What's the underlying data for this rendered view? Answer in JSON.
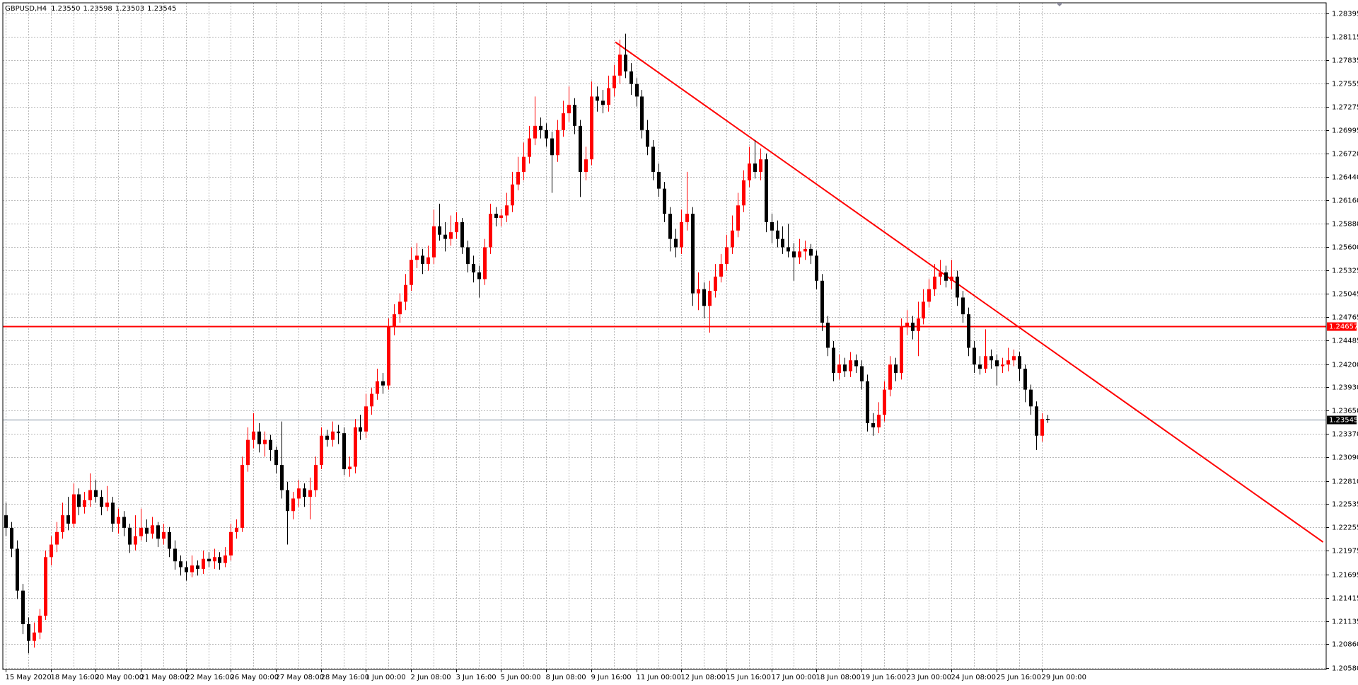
{
  "chart_data": {
    "type": "candlestick",
    "header": {
      "symbol": "GBPUSD,H4",
      "ohlc_labels": [
        "1.23550",
        "1.23598",
        "1.23503",
        "1.23545"
      ]
    },
    "bull_color": "#ff0000",
    "bear_color": "#000000",
    "grid": true,
    "ylim": [
      1.20559,
      1.28519
    ],
    "yticks": [
      1.28395,
      1.28115,
      1.27835,
      1.27555,
      1.27275,
      1.26995,
      {
        "value": 1.2672,
        "label": "1.26720"
      },
      {
        "value": 1.2644,
        "label": "1.26440"
      },
      {
        "value": 1.2616,
        "label": "1.26160"
      },
      {
        "value": 1.2588,
        "label": "1.25880"
      },
      {
        "value": 1.256,
        "label": "1.25600"
      },
      1.25325,
      1.25045,
      1.24765,
      1.24485,
      {
        "value": 1.242,
        "label": "1.24200"
      },
      {
        "value": 1.2393,
        "label": "1.23930"
      },
      {
        "value": 1.2365,
        "label": "1.23650"
      },
      {
        "value": 1.2337,
        "label": "1.23370"
      },
      {
        "value": 1.2309,
        "label": "1.23090"
      },
      {
        "value": 1.2281,
        "label": "1.22810"
      },
      1.22535,
      1.22255,
      1.21975,
      1.21695,
      1.21415,
      1.21135,
      {
        "value": 1.2086,
        "label": "1.20860"
      },
      {
        "value": 1.2058,
        "label": "1.20580"
      }
    ],
    "hline": {
      "value": 1.24657,
      "label": "1.24657",
      "color": "#ff0000"
    },
    "bid_line": {
      "value": 1.23545,
      "label": "1.23545",
      "color": "#778899"
    },
    "trendline": {
      "x": [
        108.3,
        234
      ],
      "y": [
        1.2805,
        1.2208
      ],
      "color": "#ff0000"
    },
    "categories": [
      "15 May 2020",
      null,
      null,
      null,
      null,
      null,
      null,
      null,
      "18 May 16:00",
      null,
      null,
      null,
      null,
      null,
      null,
      null,
      "20 May 00:00",
      null,
      null,
      null,
      null,
      null,
      null,
      null,
      "21 May 08:00",
      null,
      null,
      null,
      null,
      null,
      null,
      null,
      "22 May 16:00",
      null,
      null,
      null,
      null,
      null,
      null,
      null,
      "26 May 00:00",
      null,
      null,
      null,
      null,
      null,
      null,
      null,
      "27 May 08:00",
      null,
      null,
      null,
      null,
      null,
      null,
      null,
      "28 May 16:00",
      null,
      null,
      null,
      null,
      null,
      null,
      null,
      "1 Jun 00:00",
      null,
      null,
      null,
      null,
      null,
      null,
      null,
      "2 Jun 08:00",
      null,
      null,
      null,
      null,
      null,
      null,
      null,
      "3 Jun 16:00",
      null,
      null,
      null,
      null,
      null,
      null,
      null,
      "5 Jun 00:00",
      null,
      null,
      null,
      null,
      null,
      null,
      null,
      "8 Jun 08:00",
      null,
      null,
      null,
      null,
      null,
      null,
      null,
      "9 Jun 16:00",
      null,
      null,
      null,
      null,
      null,
      null,
      null,
      "11 Jun 00:00",
      null,
      null,
      null,
      null,
      null,
      null,
      null,
      "12 Jun 08:00",
      null,
      null,
      null,
      null,
      null,
      null,
      null,
      "15 Jun 16:00",
      null,
      null,
      null,
      null,
      null,
      null,
      null,
      "17 Jun 00:00",
      null,
      null,
      null,
      null,
      null,
      null,
      null,
      "18 Jun 08:00",
      null,
      null,
      null,
      null,
      null,
      null,
      null,
      "19 Jun 16:00",
      null,
      null,
      null,
      null,
      null,
      null,
      null,
      "23 Jun 00:00",
      null,
      null,
      null,
      null,
      null,
      null,
      null,
      "24 Jun 08:00",
      null,
      null,
      null,
      null,
      null,
      null,
      null,
      "25 Jun 16:00",
      null,
      null,
      null,
      null,
      null,
      null,
      null,
      "29 Jun 00:00",
      null
    ],
    "ohlc": [
      [
        1.224,
        1.2255,
        1.2215,
        1.2225
      ],
      [
        1.2225,
        1.2232,
        1.219,
        1.22
      ],
      [
        1.22,
        1.221,
        1.214,
        1.215
      ],
      [
        1.215,
        1.2158,
        1.2098,
        1.211
      ],
      [
        1.211,
        1.2118,
        1.2075,
        1.209
      ],
      [
        1.209,
        1.2112,
        1.2082,
        1.21
      ],
      [
        1.21,
        1.2128,
        1.2092,
        1.212
      ],
      [
        1.212,
        1.2198,
        1.2115,
        1.219
      ],
      [
        1.219,
        1.2215,
        1.218,
        1.2205
      ],
      [
        1.2205,
        1.2232,
        1.2196,
        1.222
      ],
      [
        1.222,
        1.2255,
        1.2212,
        1.224
      ],
      [
        1.224,
        1.2262,
        1.2222,
        1.223
      ],
      [
        1.223,
        1.2278,
        1.2225,
        1.2265
      ],
      [
        1.2265,
        1.2272,
        1.224,
        1.225
      ],
      [
        1.225,
        1.2268,
        1.2242,
        1.2258
      ],
      [
        1.2258,
        1.229,
        1.225,
        1.227
      ],
      [
        1.227,
        1.2282,
        1.2255,
        1.2262
      ],
      [
        1.2262,
        1.227,
        1.224,
        1.225
      ],
      [
        1.225,
        1.2275,
        1.2245,
        1.2255
      ],
      [
        1.2255,
        1.2262,
        1.222,
        1.223
      ],
      [
        1.223,
        1.2248,
        1.2218,
        1.2238
      ],
      [
        1.2238,
        1.2245,
        1.2215,
        1.2225
      ],
      [
        1.2225,
        1.223,
        1.2195,
        1.2205
      ],
      [
        1.2205,
        1.224,
        1.2198,
        1.2215
      ],
      [
        1.2215,
        1.2248,
        1.221,
        1.2225
      ],
      [
        1.2225,
        1.2235,
        1.2208,
        1.2218
      ],
      [
        1.2218,
        1.2238,
        1.2212,
        1.2228
      ],
      [
        1.2228,
        1.2232,
        1.2202,
        1.2212
      ],
      [
        1.2212,
        1.223,
        1.2205,
        1.222
      ],
      [
        1.222,
        1.2226,
        1.219,
        1.22
      ],
      [
        1.22,
        1.221,
        1.2175,
        1.2185
      ],
      [
        1.2185,
        1.2192,
        1.2168,
        1.2178
      ],
      [
        1.2178,
        1.2185,
        1.2162,
        1.2172
      ],
      [
        1.2172,
        1.2192,
        1.2166,
        1.218
      ],
      [
        1.218,
        1.2186,
        1.2168,
        1.2176
      ],
      [
        1.2176,
        1.2198,
        1.217,
        1.2188
      ],
      [
        1.2188,
        1.2196,
        1.2178,
        1.2185
      ],
      [
        1.2185,
        1.22,
        1.2176,
        1.219
      ],
      [
        1.219,
        1.2196,
        1.2175,
        1.2183
      ],
      [
        1.2183,
        1.2202,
        1.2178,
        1.2192
      ],
      [
        1.2192,
        1.223,
        1.2186,
        1.222
      ],
      [
        1.222,
        1.2235,
        1.2212,
        1.2225
      ],
      [
        1.2225,
        1.231,
        1.222,
        1.23
      ],
      [
        1.23,
        1.2345,
        1.2292,
        1.233
      ],
      [
        1.233,
        1.2362,
        1.232,
        1.234
      ],
      [
        1.234,
        1.235,
        1.2315,
        1.2325
      ],
      [
        1.2325,
        1.234,
        1.231,
        1.233
      ],
      [
        1.233,
        1.2336,
        1.2305,
        1.2318
      ],
      [
        1.2318,
        1.2322,
        1.229,
        1.23
      ],
      [
        1.23,
        1.2352,
        1.226,
        1.227
      ],
      [
        1.227,
        1.228,
        1.2205,
        1.2245
      ],
      [
        1.2245,
        1.2268,
        1.2235,
        1.226
      ],
      [
        1.226,
        1.2282,
        1.225,
        1.2272
      ],
      [
        1.2272,
        1.2278,
        1.225,
        1.2262
      ],
      [
        1.2262,
        1.2285,
        1.2235,
        1.227
      ],
      [
        1.227,
        1.231,
        1.2262,
        1.23
      ],
      [
        1.23,
        1.2345,
        1.2295,
        1.2335
      ],
      [
        1.2335,
        1.2342,
        1.2322,
        1.233
      ],
      [
        1.233,
        1.2352,
        1.2322,
        1.234
      ],
      [
        1.234,
        1.2348,
        1.2325,
        1.2338
      ],
      [
        1.2338,
        1.2345,
        1.2288,
        1.2295
      ],
      [
        1.2295,
        1.231,
        1.2286,
        1.2298
      ],
      [
        1.2298,
        1.2355,
        1.229,
        1.2345
      ],
      [
        1.2345,
        1.236,
        1.233,
        1.234
      ],
      [
        1.234,
        1.2385,
        1.2332,
        1.237
      ],
      [
        1.237,
        1.2392,
        1.236,
        1.2385
      ],
      [
        1.2385,
        1.2415,
        1.2378,
        1.24
      ],
      [
        1.24,
        1.241,
        1.2385,
        1.2395
      ],
      [
        1.2395,
        1.2475,
        1.239,
        1.2465
      ],
      [
        1.2465,
        1.2492,
        1.2455,
        1.248
      ],
      [
        1.248,
        1.2505,
        1.247,
        1.2495
      ],
      [
        1.2495,
        1.2528,
        1.2485,
        1.2515
      ],
      [
        1.2515,
        1.256,
        1.2508,
        1.2545
      ],
      [
        1.2545,
        1.2565,
        1.2535,
        1.255
      ],
      [
        1.255,
        1.2558,
        1.2528,
        1.254
      ],
      [
        1.254,
        1.2562,
        1.2532,
        1.2548
      ],
      [
        1.2548,
        1.2605,
        1.254,
        1.2585
      ],
      [
        1.2585,
        1.2612,
        1.2568,
        1.2575
      ],
      [
        1.2575,
        1.259,
        1.2555,
        1.257
      ],
      [
        1.257,
        1.2598,
        1.2562,
        1.2578
      ],
      [
        1.2578,
        1.2602,
        1.257,
        1.259
      ],
      [
        1.259,
        1.2595,
        1.2552,
        1.256
      ],
      [
        1.256,
        1.2568,
        1.253,
        1.254
      ],
      [
        1.254,
        1.255,
        1.2518,
        1.253
      ],
      [
        1.253,
        1.2538,
        1.25,
        1.2522
      ],
      [
        1.2522,
        1.257,
        1.2515,
        1.256
      ],
      [
        1.256,
        1.2612,
        1.2552,
        1.26
      ],
      [
        1.26,
        1.2608,
        1.2585,
        1.2595
      ],
      [
        1.2595,
        1.2606,
        1.2585,
        1.2598
      ],
      [
        1.2598,
        1.2625,
        1.259,
        1.261
      ],
      [
        1.261,
        1.265,
        1.2602,
        1.2635
      ],
      [
        1.2635,
        1.2668,
        1.2628,
        1.265
      ],
      [
        1.265,
        1.2685,
        1.264,
        1.2668
      ],
      [
        1.2668,
        1.2705,
        1.266,
        1.269
      ],
      [
        1.269,
        1.274,
        1.2682,
        1.2705
      ],
      [
        1.2705,
        1.2715,
        1.269,
        1.27
      ],
      [
        1.27,
        1.2708,
        1.268,
        1.269
      ],
      [
        1.269,
        1.2698,
        1.2625,
        1.267
      ],
      [
        1.267,
        1.2712,
        1.2662,
        1.27
      ],
      [
        1.27,
        1.2735,
        1.2692,
        1.272
      ],
      [
        1.272,
        1.2752,
        1.271,
        1.273
      ],
      [
        1.273,
        1.2738,
        1.2695,
        1.2705
      ],
      [
        1.2705,
        1.2712,
        1.262,
        1.265
      ],
      [
        1.265,
        1.268,
        1.264,
        1.2665
      ],
      [
        1.2665,
        1.2758,
        1.2658,
        1.274
      ],
      [
        1.274,
        1.2752,
        1.2722,
        1.2735
      ],
      [
        1.2735,
        1.2748,
        1.272,
        1.273
      ],
      [
        1.273,
        1.2765,
        1.2722,
        1.275
      ],
      [
        1.275,
        1.2778,
        1.274,
        1.2765
      ],
      [
        1.2765,
        1.2808,
        1.2755,
        1.279
      ],
      [
        1.279,
        1.2815,
        1.2762,
        1.277
      ],
      [
        1.277,
        1.278,
        1.2742,
        1.2755
      ],
      [
        1.2755,
        1.2762,
        1.2728,
        1.274
      ],
      [
        1.274,
        1.2748,
        1.269,
        1.27
      ],
      [
        1.27,
        1.2712,
        1.267,
        1.268
      ],
      [
        1.268,
        1.2688,
        1.264,
        1.265
      ],
      [
        1.265,
        1.266,
        1.262,
        1.263
      ],
      [
        1.263,
        1.2638,
        1.259,
        1.26
      ],
      [
        1.26,
        1.2608,
        1.2555,
        1.257
      ],
      [
        1.257,
        1.2582,
        1.2548,
        1.256
      ],
      [
        1.256,
        1.2605,
        1.2552,
        1.259
      ],
      [
        1.259,
        1.265,
        1.258,
        1.26
      ],
      [
        1.26,
        1.2608,
        1.249,
        1.2505
      ],
      [
        1.2505,
        1.253,
        1.2485,
        1.251
      ],
      [
        1.251,
        1.2518,
        1.2475,
        1.249
      ],
      [
        1.249,
        1.252,
        1.2458,
        1.2508
      ],
      [
        1.2508,
        1.254,
        1.25,
        1.2525
      ],
      [
        1.2525,
        1.2552,
        1.2518,
        1.254
      ],
      [
        1.254,
        1.2575,
        1.2532,
        1.256
      ],
      [
        1.256,
        1.2598,
        1.2552,
        1.258
      ],
      [
        1.258,
        1.2625,
        1.2572,
        1.261
      ],
      [
        1.261,
        1.2652,
        1.2602,
        1.264
      ],
      [
        1.264,
        1.268,
        1.2632,
        1.266
      ],
      [
        1.266,
        1.2688,
        1.2642,
        1.265
      ],
      [
        1.265,
        1.2678,
        1.264,
        1.2665
      ],
      [
        1.2665,
        1.2672,
        1.2578,
        1.259
      ],
      [
        1.259,
        1.26,
        1.2565,
        1.258
      ],
      [
        1.258,
        1.2592,
        1.256,
        1.257
      ],
      [
        1.257,
        1.2585,
        1.2552,
        1.256
      ],
      [
        1.256,
        1.2588,
        1.2548,
        1.2555
      ],
      [
        1.2555,
        1.2565,
        1.252,
        1.2548
      ],
      [
        1.2548,
        1.257,
        1.254,
        1.2555
      ],
      [
        1.2555,
        1.2568,
        1.2545,
        1.2558
      ],
      [
        1.2558,
        1.2564,
        1.254,
        1.255
      ],
      [
        1.255,
        1.2556,
        1.251,
        1.252
      ],
      [
        1.252,
        1.2528,
        1.246,
        1.247
      ],
      [
        1.247,
        1.2478,
        1.243,
        1.244
      ],
      [
        1.244,
        1.2448,
        1.24,
        1.241
      ],
      [
        1.241,
        1.2432,
        1.2402,
        1.242
      ],
      [
        1.242,
        1.2428,
        1.2405,
        1.2412
      ],
      [
        1.2412,
        1.2435,
        1.2405,
        1.2425
      ],
      [
        1.2425,
        1.2432,
        1.241,
        1.2418
      ],
      [
        1.2418,
        1.2425,
        1.239,
        1.24
      ],
      [
        1.24,
        1.2408,
        1.234,
        1.235
      ],
      [
        1.235,
        1.2362,
        1.2335,
        1.2345
      ],
      [
        1.2345,
        1.2375,
        1.2338,
        1.236
      ],
      [
        1.236,
        1.24,
        1.2352,
        1.239
      ],
      [
        1.239,
        1.243,
        1.2382,
        1.242
      ],
      [
        1.242,
        1.2428,
        1.24,
        1.241
      ],
      [
        1.241,
        1.2475,
        1.2402,
        1.2465
      ],
      [
        1.2465,
        1.2485,
        1.2455,
        1.247
      ],
      [
        1.247,
        1.2478,
        1.245,
        1.246
      ],
      [
        1.246,
        1.2495,
        1.243,
        1.2475
      ],
      [
        1.2475,
        1.251,
        1.2468,
        1.2495
      ],
      [
        1.2495,
        1.2522,
        1.2488,
        1.251
      ],
      [
        1.251,
        1.254,
        1.2502,
        1.2525
      ],
      [
        1.2525,
        1.2545,
        1.2515,
        1.253
      ],
      [
        1.253,
        1.2538,
        1.2512,
        1.252
      ],
      [
        1.252,
        1.2545,
        1.251,
        1.2525
      ],
      [
        1.2525,
        1.2532,
        1.249,
        1.25
      ],
      [
        1.25,
        1.2508,
        1.247,
        1.248
      ],
      [
        1.248,
        1.2488,
        1.243,
        1.244
      ],
      [
        1.244,
        1.2448,
        1.241,
        1.242
      ],
      [
        1.242,
        1.243,
        1.2408,
        1.2415
      ],
      [
        1.2415,
        1.2462,
        1.241,
        1.243
      ],
      [
        1.243,
        1.2438,
        1.2415,
        1.2425
      ],
      [
        1.2425,
        1.2432,
        1.2395,
        1.2418
      ],
      [
        1.2418,
        1.2428,
        1.241,
        1.242
      ],
      [
        1.242,
        1.244,
        1.2412,
        1.2425
      ],
      [
        1.2425,
        1.2438,
        1.2418,
        1.243
      ],
      [
        1.243,
        1.2435,
        1.24,
        1.2415
      ],
      [
        1.2415,
        1.242,
        1.2375,
        1.239
      ],
      [
        1.239,
        1.2396,
        1.236,
        1.237
      ],
      [
        1.237,
        1.2376,
        1.2318,
        1.2335
      ],
      [
        1.2335,
        1.2362,
        1.2328,
        1.2355
      ],
      [
        1.2355,
        1.23598,
        1.23503,
        1.23545
      ]
    ]
  }
}
